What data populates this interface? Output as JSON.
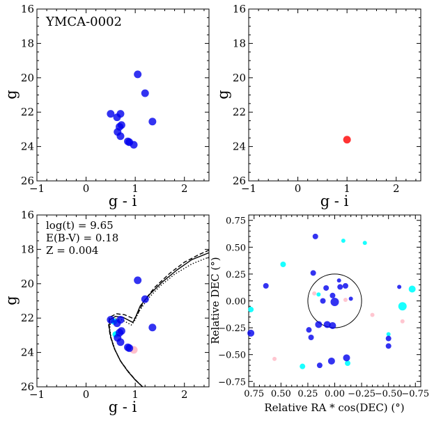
{
  "chart_data": [
    {
      "type": "scatter",
      "panel": "top-left",
      "annotation": "YMCA-0002",
      "xlabel": "g - i",
      "ylabel": "g",
      "xlim": [
        -1,
        2.5
      ],
      "ylim": [
        26,
        16
      ],
      "xticks": [
        -1,
        0,
        1,
        2
      ],
      "yticks": [
        16,
        18,
        20,
        22,
        24,
        26
      ],
      "color": "#0000ee",
      "points": [
        {
          "x": 1.05,
          "y": 19.8
        },
        {
          "x": 1.2,
          "y": 20.9
        },
        {
          "x": 0.5,
          "y": 22.1
        },
        {
          "x": 0.7,
          "y": 22.1
        },
        {
          "x": 0.63,
          "y": 22.3
        },
        {
          "x": 1.35,
          "y": 22.55
        },
        {
          "x": 0.72,
          "y": 22.75
        },
        {
          "x": 0.68,
          "y": 22.85
        },
        {
          "x": 0.64,
          "y": 23.15
        },
        {
          "x": 0.7,
          "y": 23.4
        },
        {
          "x": 0.85,
          "y": 23.7
        },
        {
          "x": 0.88,
          "y": 23.75
        },
        {
          "x": 0.97,
          "y": 23.9
        }
      ]
    },
    {
      "type": "scatter",
      "panel": "top-right",
      "xlabel": "g - i",
      "ylabel": "g",
      "xlim": [
        -1,
        2.5
      ],
      "ylim": [
        26,
        16
      ],
      "xticks": [
        -1,
        0,
        1,
        2
      ],
      "yticks": [
        16,
        18,
        20,
        22,
        24,
        26
      ],
      "color": "#ff0000",
      "points": [
        {
          "x": 1.0,
          "y": 23.6
        }
      ]
    },
    {
      "type": "scatter",
      "panel": "bottom-left",
      "annotation_lines": [
        "log(t) = 9.65",
        "E(B-V) = 0.18",
        "Z = 0.004"
      ],
      "xlabel": "g - i",
      "ylabel": "g",
      "xlim": [
        -1,
        2.5
      ],
      "ylim": [
        26,
        16
      ],
      "xticks": [
        -1,
        0,
        1,
        2
      ],
      "yticks": [
        16,
        18,
        20,
        22,
        24,
        26
      ],
      "isochrones": [
        {
          "style": "solid",
          "points": [
            [
              1.15,
              26
            ],
            [
              1.0,
              25.6
            ],
            [
              0.85,
              25.1
            ],
            [
              0.7,
              24.5
            ],
            [
              0.58,
              23.8
            ],
            [
              0.5,
              23.1
            ],
            [
              0.47,
              22.5
            ],
            [
              0.48,
              22.1
            ],
            [
              0.6,
              21.9
            ],
            [
              0.75,
              21.95
            ],
            [
              0.95,
              22.25
            ],
            [
              1.0,
              22.0
            ],
            [
              1.1,
              21.3
            ],
            [
              1.3,
              20.6
            ],
            [
              1.55,
              19.9
            ],
            [
              1.85,
              19.2
            ],
            [
              2.15,
              18.6
            ],
            [
              2.5,
              18.2
            ]
          ]
        },
        {
          "style": "dashed",
          "points": [
            [
              1.15,
              26
            ],
            [
              0.99,
              25.55
            ],
            [
              0.84,
              25.05
            ],
            [
              0.69,
              24.45
            ],
            [
              0.57,
              23.75
            ],
            [
              0.49,
              23.05
            ],
            [
              0.46,
              22.4
            ],
            [
              0.48,
              21.95
            ],
            [
              0.62,
              21.75
            ],
            [
              0.78,
              21.8
            ],
            [
              0.98,
              22.05
            ],
            [
              1.05,
              21.75
            ],
            [
              1.18,
              21.0
            ],
            [
              1.4,
              20.2
            ],
            [
              1.7,
              19.4
            ],
            [
              2.0,
              18.75
            ],
            [
              2.3,
              18.3
            ],
            [
              2.5,
              18.05
            ]
          ]
        },
        {
          "style": "dotted",
          "points": [
            [
              1.15,
              26
            ],
            [
              1.01,
              25.62
            ],
            [
              0.86,
              25.15
            ],
            [
              0.71,
              24.55
            ],
            [
              0.59,
              23.85
            ],
            [
              0.51,
              23.15
            ],
            [
              0.48,
              22.6
            ],
            [
              0.5,
              22.25
            ],
            [
              0.6,
              22.05
            ],
            [
              0.73,
              22.1
            ],
            [
              0.92,
              22.4
            ],
            [
              0.98,
              22.2
            ],
            [
              1.08,
              21.6
            ],
            [
              1.25,
              20.9
            ],
            [
              1.5,
              20.15
            ],
            [
              1.8,
              19.45
            ],
            [
              2.15,
              18.85
            ],
            [
              2.5,
              18.45
            ]
          ]
        }
      ],
      "members": {
        "color": "#0000ee",
        "points": [
          {
            "x": 1.05,
            "y": 19.8
          },
          {
            "x": 1.2,
            "y": 20.9
          },
          {
            "x": 0.5,
            "y": 22.1
          },
          {
            "x": 0.7,
            "y": 22.1
          },
          {
            "x": 0.63,
            "y": 22.3
          },
          {
            "x": 1.35,
            "y": 22.55
          },
          {
            "x": 0.72,
            "y": 22.75
          },
          {
            "x": 0.68,
            "y": 22.85
          },
          {
            "x": 0.64,
            "y": 23.15
          },
          {
            "x": 0.7,
            "y": 23.4
          },
          {
            "x": 0.85,
            "y": 23.7
          },
          {
            "x": 0.88,
            "y": 23.75
          }
        ]
      },
      "cyan_points": [
        {
          "x": 0.6,
          "y": 22.95
        },
        {
          "x": 0.57,
          "y": 22.2
        }
      ],
      "pink_points": [
        {
          "x": 0.97,
          "y": 23.85
        }
      ]
    },
    {
      "type": "scatter",
      "panel": "bottom-right",
      "xlabel": "Relative RA * cos(DEC) (°)",
      "ylabel": "Relative DEC (°)",
      "xlim": [
        0.8,
        -0.8
      ],
      "ylim": [
        -0.8,
        0.8
      ],
      "xticks": [
        0.75,
        0.5,
        0.25,
        0.0,
        -0.25,
        -0.5,
        -0.75
      ],
      "xtick_labels": [
        "0.75",
        "0.50",
        "0.25",
        "0.00",
        "−0.25",
        "−0.50",
        "−0.75"
      ],
      "yticks": [
        0.75,
        0.5,
        0.25,
        0.0,
        -0.25,
        -0.5,
        -0.75
      ],
      "ytick_labels": [
        "0.75",
        "0.50",
        "0.25",
        "0.00",
        "−0.25",
        "−0.50",
        "−0.75"
      ],
      "circle": {
        "center_x": 0.0,
        "center_y": 0.0,
        "radius": 0.25
      },
      "blue_points": [
        {
          "x": 0.18,
          "y": 0.6,
          "s": 4
        },
        {
          "x": 0.2,
          "y": 0.26,
          "s": 4
        },
        {
          "x": 0.64,
          "y": 0.14,
          "s": 4
        },
        {
          "x": 0.11,
          "y": 0.0,
          "s": 4
        },
        {
          "x": 0.24,
          "y": -0.27,
          "s": 4
        },
        {
          "x": 0.22,
          "y": -0.34,
          "s": 4
        },
        {
          "x": 0.78,
          "y": -0.3,
          "s": 5
        },
        {
          "x": 0.14,
          "y": -0.6,
          "s": 4
        },
        {
          "x": 0.02,
          "y": 0.05,
          "s": 4
        },
        {
          "x": -0.05,
          "y": 0.13,
          "s": 4
        },
        {
          "x": -0.1,
          "y": 0.14,
          "s": 4
        },
        {
          "x": -0.15,
          "y": 0.02,
          "s": 3
        },
        {
          "x": 0.0,
          "y": -0.01,
          "s": 6
        },
        {
          "x": 0.02,
          "y": -0.23,
          "s": 5
        },
        {
          "x": 0.07,
          "y": -0.22,
          "s": 5
        },
        {
          "x": 0.15,
          "y": -0.22,
          "s": 5
        },
        {
          "x": 0.03,
          "y": -0.56,
          "s": 5
        },
        {
          "x": -0.11,
          "y": -0.53,
          "s": 5
        },
        {
          "x": -0.6,
          "y": 0.13,
          "s": 3
        },
        {
          "x": -0.5,
          "y": -0.35,
          "s": 4
        },
        {
          "x": -0.5,
          "y": -0.42,
          "s": 4
        },
        {
          "x": -0.04,
          "y": 0.19,
          "s": 3
        },
        {
          "x": 0.08,
          "y": 0.12,
          "s": 4
        }
      ],
      "cyan_points": [
        {
          "x": 0.78,
          "y": -0.08,
          "s": 4
        },
        {
          "x": 0.48,
          "y": 0.34,
          "s": 4
        },
        {
          "x": -0.08,
          "y": 0.56,
          "s": 3
        },
        {
          "x": -0.28,
          "y": 0.54,
          "s": 3
        },
        {
          "x": -0.72,
          "y": 0.11,
          "s": 5
        },
        {
          "x": 0.3,
          "y": -0.61,
          "s": 4
        },
        {
          "x": -0.12,
          "y": -0.58,
          "s": 4
        },
        {
          "x": -0.5,
          "y": -0.31,
          "s": 3
        },
        {
          "x": -0.63,
          "y": -0.05,
          "s": 6
        },
        {
          "x": 0.15,
          "y": 0.06,
          "s": 3
        }
      ],
      "pink_points": [
        {
          "x": 0.56,
          "y": -0.54,
          "s": 3
        },
        {
          "x": -0.35,
          "y": -0.13,
          "s": 3
        },
        {
          "x": -0.63,
          "y": -0.19,
          "s": 3
        },
        {
          "x": -0.1,
          "y": 0.01,
          "s": 3
        },
        {
          "x": 0.19,
          "y": 0.07,
          "s": 3
        }
      ]
    }
  ],
  "colors": {
    "blue": "#0000ee",
    "red": "#ff0000",
    "cyan": "#00ffff",
    "pink": "#ffc0cb"
  }
}
